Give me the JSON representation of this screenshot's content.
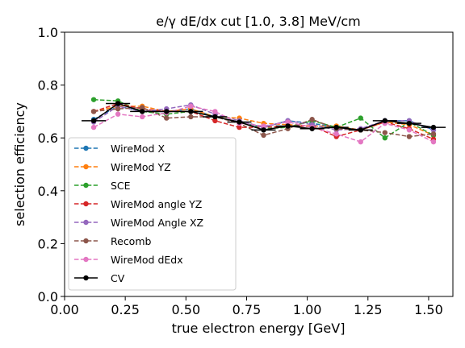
{
  "chart_data": {
    "type": "line",
    "title": "e/γ dE/dx cut [1.0, 3.8] MeV/cm",
    "xlabel": "true electron energy [GeV]",
    "ylabel": "selection efficiency",
    "xlim": [
      0.0,
      1.6
    ],
    "ylim": [
      0.0,
      1.0
    ],
    "xticks": [
      0.0,
      0.25,
      0.5,
      0.75,
      1.0,
      1.25,
      1.5
    ],
    "xtick_labels": [
      "0.00",
      "0.25",
      "0.50",
      "0.75",
      "1.00",
      "1.25",
      "1.50"
    ],
    "yticks": [
      0.0,
      0.2,
      0.4,
      0.6,
      0.8,
      1.0
    ],
    "ytick_labels": [
      "0.0",
      "0.2",
      "0.4",
      "0.6",
      "0.8",
      "1.0"
    ],
    "grid": false,
    "legend_position": "lower-left",
    "x": [
      0.12,
      0.22,
      0.32,
      0.42,
      0.52,
      0.62,
      0.72,
      0.82,
      0.92,
      1.02,
      1.12,
      1.22,
      1.32,
      1.42,
      1.52
    ],
    "series": [
      {
        "name": "WireMod X",
        "color": "#1f77b4",
        "style": "dashed",
        "values": [
          0.67,
          0.72,
          0.7,
          0.7,
          0.71,
          0.68,
          0.66,
          0.64,
          0.665,
          0.655,
          0.64,
          0.63,
          0.665,
          0.665,
          0.63
        ]
      },
      {
        "name": "WireMod YZ",
        "color": "#ff7f0e",
        "style": "dashed",
        "values": [
          0.7,
          0.72,
          0.72,
          0.7,
          0.71,
          0.68,
          0.675,
          0.655,
          0.65,
          0.645,
          0.645,
          0.63,
          0.66,
          0.65,
          0.61
        ]
      },
      {
        "name": "SCE",
        "color": "#2ca02c",
        "style": "dashed",
        "values": [
          0.745,
          0.74,
          0.7,
          0.69,
          0.7,
          0.68,
          0.66,
          0.635,
          0.64,
          0.665,
          0.64,
          0.675,
          0.6,
          0.66,
          0.61
        ]
      },
      {
        "name": "WireMod angle YZ",
        "color": "#d62728",
        "style": "dashed",
        "values": [
          0.7,
          0.73,
          0.71,
          0.7,
          0.7,
          0.665,
          0.64,
          0.64,
          0.645,
          0.645,
          0.605,
          0.63,
          0.66,
          0.635,
          0.595
        ]
      },
      {
        "name": "WireMod Angle XZ",
        "color": "#9467bd",
        "style": "dashed",
        "values": [
          0.66,
          0.72,
          0.7,
          0.71,
          0.725,
          0.69,
          0.665,
          0.64,
          0.665,
          0.65,
          0.63,
          0.635,
          0.665,
          0.665,
          0.63
        ]
      },
      {
        "name": "Recomb",
        "color": "#8c564b",
        "style": "dashed",
        "values": [
          0.7,
          0.71,
          0.715,
          0.675,
          0.68,
          0.68,
          0.655,
          0.61,
          0.635,
          0.67,
          0.635,
          0.63,
          0.62,
          0.605,
          0.615
        ]
      },
      {
        "name": "WireMod dEdx",
        "color": "#e377c2",
        "style": "dashed",
        "values": [
          0.64,
          0.69,
          0.68,
          0.695,
          0.72,
          0.7,
          0.655,
          0.645,
          0.66,
          0.64,
          0.615,
          0.585,
          0.655,
          0.63,
          0.585
        ]
      },
      {
        "name": "CV",
        "color": "#000000",
        "style": "solid",
        "xerr": 0.05,
        "values": [
          0.665,
          0.73,
          0.7,
          0.7,
          0.7,
          0.68,
          0.66,
          0.63,
          0.645,
          0.635,
          0.64,
          0.63,
          0.665,
          0.655,
          0.64
        ]
      }
    ]
  }
}
